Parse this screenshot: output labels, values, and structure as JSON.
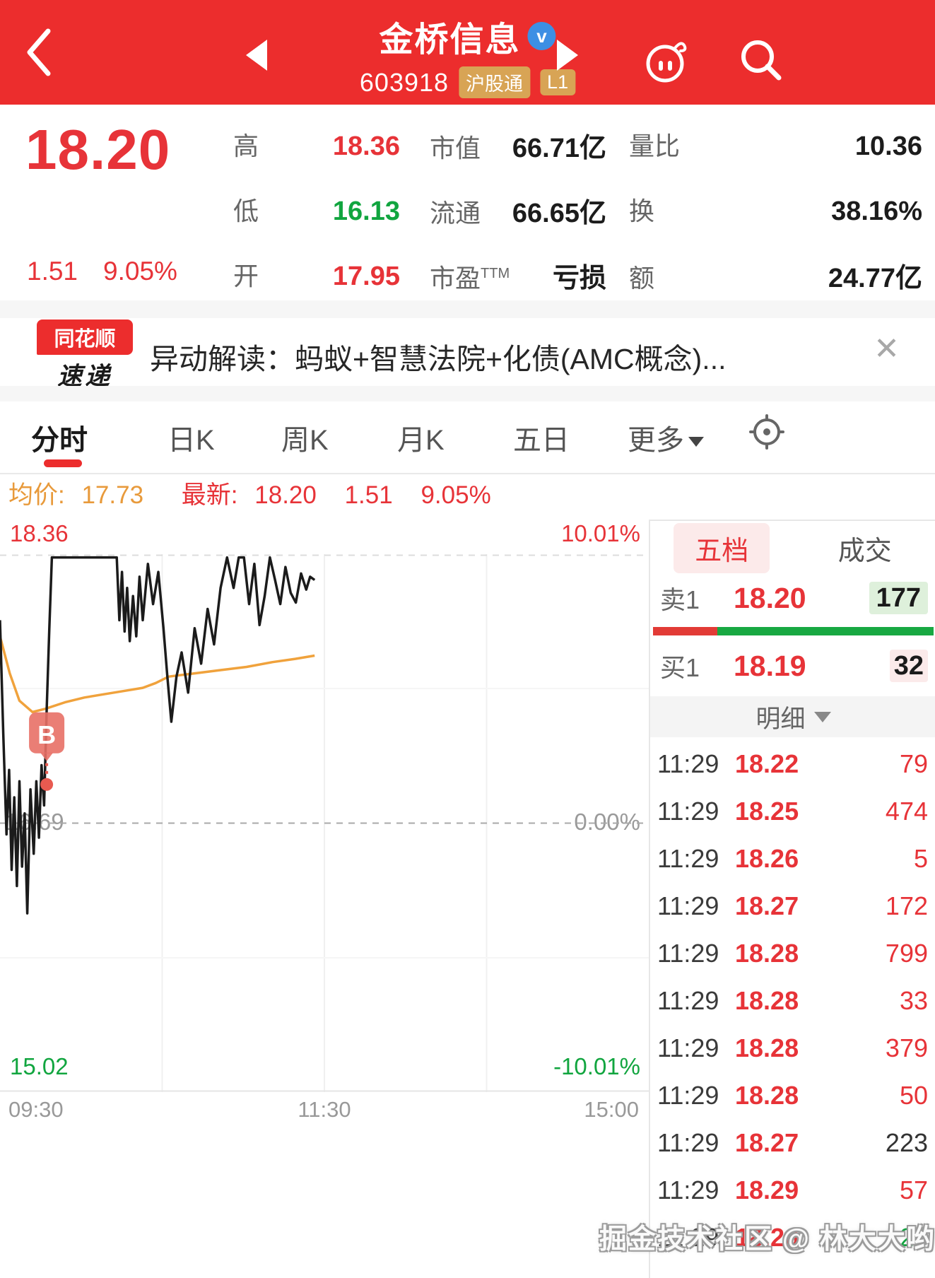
{
  "header": {
    "title": "金桥信息",
    "verified_badge": "v",
    "code": "603918",
    "market_badge": "沪股通",
    "level_badge": "L1"
  },
  "quote": {
    "price": "18.20",
    "change": "1.51",
    "change_pct": "9.05%",
    "col2": [
      {
        "label": "高",
        "value": "18.36",
        "cls": "red"
      },
      {
        "label": "低",
        "value": "16.13",
        "cls": "green"
      },
      {
        "label": "开",
        "value": "17.95",
        "cls": "red"
      }
    ],
    "col3": [
      {
        "label": "市值",
        "value": "66.71亿"
      },
      {
        "label": "流通",
        "value": "66.65亿"
      },
      {
        "label": "市盈",
        "sup": "TTM",
        "value": "亏损"
      }
    ],
    "col4": [
      {
        "label": "量比",
        "value": "10.36"
      },
      {
        "label": "换",
        "value": "38.16%"
      },
      {
        "label": "额",
        "value": "24.77亿"
      }
    ]
  },
  "news": {
    "logo_line1": "同花顺",
    "logo_line2": "速递",
    "text": "异动解读：蚂蚁+智慧法院+化债(AMC概念)...",
    "close": "✕"
  },
  "tabs": [
    {
      "label": "分时",
      "active": true
    },
    {
      "label": "日K",
      "active": false
    },
    {
      "label": "周K",
      "active": false
    },
    {
      "label": "月K",
      "active": false
    },
    {
      "label": "五日",
      "active": false
    },
    {
      "label": "更多",
      "active": false
    }
  ],
  "chart_info": {
    "avg_label": "均价:",
    "avg": "17.73",
    "latest_label": "最新:",
    "latest": "18.20",
    "chg": "1.51",
    "chg_pct": "9.05%"
  },
  "chart_data": {
    "type": "line",
    "x_axis_labels": [
      "09:30",
      "11:30",
      "15:00"
    ],
    "ylim": [
      15.02,
      18.36
    ],
    "prev_close": 16.69,
    "left_labels": [
      "18.36",
      "16.69",
      "15.02"
    ],
    "right_labels": [
      "10.01%",
      "0.00%",
      "-10.01%"
    ],
    "grid_v_divisions": 4,
    "series": [
      {
        "id": "price-line",
        "name": "price",
        "color": "#1b1b1b",
        "points": [
          [
            0.0,
            17.95
          ],
          [
            0.005,
            17.25
          ],
          [
            0.01,
            16.62
          ],
          [
            0.014,
            17.02
          ],
          [
            0.018,
            16.4
          ],
          [
            0.022,
            16.85
          ],
          [
            0.026,
            16.3
          ],
          [
            0.03,
            16.95
          ],
          [
            0.034,
            16.42
          ],
          [
            0.038,
            16.75
          ],
          [
            0.042,
            16.13
          ],
          [
            0.047,
            16.9
          ],
          [
            0.052,
            16.5
          ],
          [
            0.056,
            16.95
          ],
          [
            0.06,
            16.6
          ],
          [
            0.064,
            17.05
          ],
          [
            0.068,
            16.8
          ],
          [
            0.072,
            17.4
          ],
          [
            0.076,
            17.9
          ],
          [
            0.08,
            18.34
          ],
          [
            0.105,
            18.34
          ],
          [
            0.13,
            18.34
          ],
          [
            0.155,
            18.34
          ],
          [
            0.18,
            18.34
          ],
          [
            0.184,
            17.95
          ],
          [
            0.188,
            18.25
          ],
          [
            0.192,
            17.88
          ],
          [
            0.196,
            18.15
          ],
          [
            0.2,
            17.82
          ],
          [
            0.205,
            18.1
          ],
          [
            0.21,
            17.85
          ],
          [
            0.215,
            18.22
          ],
          [
            0.22,
            17.95
          ],
          [
            0.228,
            18.3
          ],
          [
            0.236,
            18.05
          ],
          [
            0.244,
            18.25
          ],
          [
            0.252,
            17.9
          ],
          [
            0.258,
            17.6
          ],
          [
            0.264,
            17.32
          ],
          [
            0.272,
            17.6
          ],
          [
            0.28,
            17.75
          ],
          [
            0.29,
            17.5
          ],
          [
            0.3,
            17.9
          ],
          [
            0.31,
            17.68
          ],
          [
            0.32,
            18.02
          ],
          [
            0.33,
            17.8
          ],
          [
            0.34,
            18.15
          ],
          [
            0.35,
            18.34
          ],
          [
            0.36,
            18.15
          ],
          [
            0.368,
            18.34
          ],
          [
            0.376,
            18.34
          ],
          [
            0.384,
            18.05
          ],
          [
            0.392,
            18.3
          ],
          [
            0.4,
            17.92
          ],
          [
            0.408,
            18.1
          ],
          [
            0.416,
            18.34
          ],
          [
            0.424,
            18.2
          ],
          [
            0.432,
            18.05
          ],
          [
            0.44,
            18.28
          ],
          [
            0.448,
            18.12
          ],
          [
            0.456,
            18.06
          ],
          [
            0.464,
            18.24
          ],
          [
            0.472,
            18.14
          ],
          [
            0.478,
            18.22
          ],
          [
            0.485,
            18.2
          ]
        ]
      },
      {
        "id": "avg-line",
        "name": "avg",
        "color": "#F0A23C",
        "points": [
          [
            0.0,
            17.85
          ],
          [
            0.015,
            17.62
          ],
          [
            0.03,
            17.45
          ],
          [
            0.05,
            17.38
          ],
          [
            0.07,
            17.4
          ],
          [
            0.1,
            17.44
          ],
          [
            0.13,
            17.47
          ],
          [
            0.16,
            17.49
          ],
          [
            0.19,
            17.51
          ],
          [
            0.22,
            17.53
          ],
          [
            0.24,
            17.56
          ],
          [
            0.26,
            17.6
          ],
          [
            0.3,
            17.62
          ],
          [
            0.34,
            17.64
          ],
          [
            0.38,
            17.66
          ],
          [
            0.42,
            17.69
          ],
          [
            0.455,
            17.71
          ],
          [
            0.485,
            17.73
          ]
        ]
      }
    ],
    "buy_marker": {
      "label": "B",
      "x": 0.072,
      "price": 16.93
    }
  },
  "order_panel": {
    "tabs": [
      {
        "label": "五档",
        "active": true
      },
      {
        "label": "成交",
        "active": false
      }
    ],
    "sell": {
      "label": "卖1",
      "price": "18.20",
      "vol": "177"
    },
    "buy": {
      "label": "买1",
      "price": "18.19",
      "vol": "32"
    },
    "bar": {
      "red_pct": "23%",
      "green_pct": "77%"
    },
    "detail_label": "明细",
    "trades": [
      {
        "time": "11:29",
        "price": "18.22",
        "vol": "79",
        "vol_color": "red"
      },
      {
        "time": "11:29",
        "price": "18.25",
        "vol": "474",
        "vol_color": "red"
      },
      {
        "time": "11:29",
        "price": "18.26",
        "vol": "5",
        "vol_color": "red"
      },
      {
        "time": "11:29",
        "price": "18.27",
        "vol": "172",
        "vol_color": "red"
      },
      {
        "time": "11:29",
        "price": "18.28",
        "vol": "799",
        "vol_color": "red"
      },
      {
        "time": "11:29",
        "price": "18.28",
        "vol": "33",
        "vol_color": "red"
      },
      {
        "time": "11:29",
        "price": "18.28",
        "vol": "379",
        "vol_color": "red"
      },
      {
        "time": "11:29",
        "price": "18.28",
        "vol": "50",
        "vol_color": "red"
      },
      {
        "time": "11:29",
        "price": "18.27",
        "vol": "223",
        "vol_color": "dark"
      },
      {
        "time": "11:29",
        "price": "18.29",
        "vol": "57",
        "vol_color": "red"
      },
      {
        "time": "11:29",
        "price": "18.26",
        "vol": "25",
        "vol_color": "green"
      }
    ]
  },
  "watermark": "掘金技术社区 @ 林大大哟",
  "colors": {
    "header_red": "#EC2D2D",
    "up_red": "#E73338",
    "down_green": "#11A53F",
    "avg_orange": "#E89A3B",
    "badge_tan": "#D8A455",
    "verified_blue": "#3D8FE4"
  }
}
